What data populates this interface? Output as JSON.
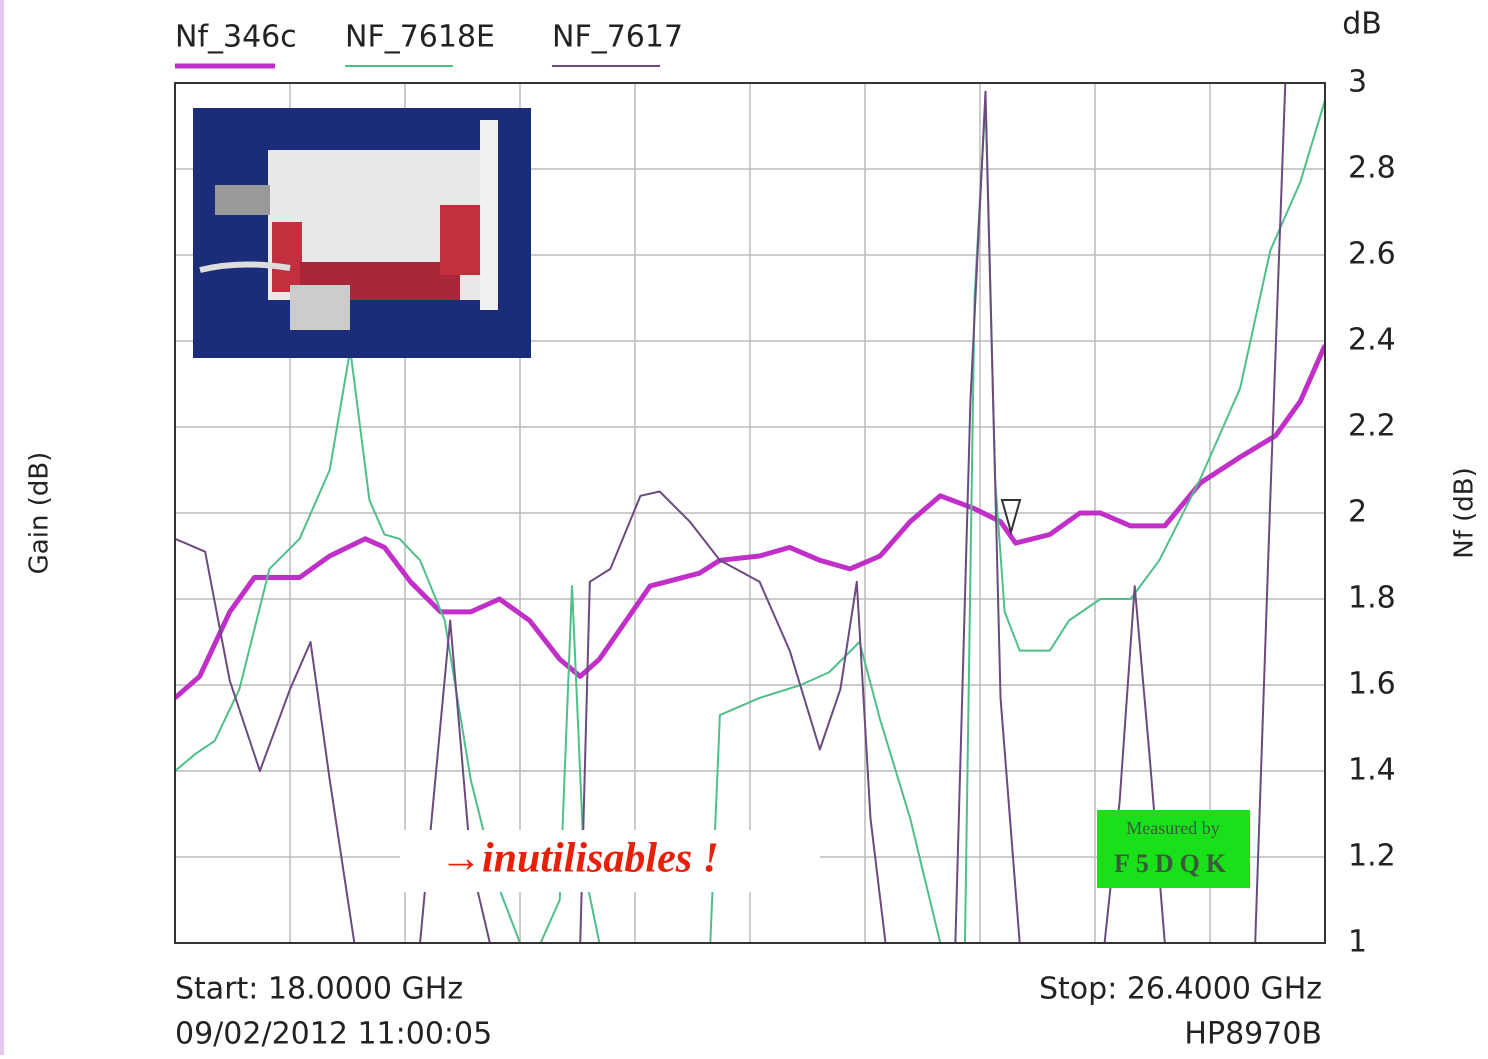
{
  "chart_data": {
    "type": "line",
    "y_unit": "dB",
    "ylabel_left": "Gain (dB)",
    "ylabel_right": "Nf (dB)",
    "xlim": [
      18,
      26.4
    ],
    "ylim": [
      1,
      3
    ],
    "yticks": [
      1,
      1.2,
      1.4,
      1.6,
      1.8,
      2,
      2.2,
      2.4,
      2.6,
      2.8,
      3
    ],
    "grid": true,
    "start_label": "Start: 18.0000 GHz",
    "stop_label": "Stop: 26.4000 GHz",
    "timestamp": "09/02/2012 11:00:05",
    "instrument": "HP8970B",
    "annotation": "→inutilisables !",
    "badge_line1": "Measured by",
    "badge_line2": "F5DQK",
    "series": [
      {
        "name": "Nf_346c",
        "color": "#c030c8",
        "width": 5,
        "x": [
          18.0,
          18.18,
          18.4,
          18.58,
          18.91,
          19.13,
          19.39,
          19.53,
          19.72,
          19.94,
          20.16,
          20.37,
          20.59,
          20.81,
          20.96,
          21.1,
          21.47,
          21.83,
          21.98,
          22.27,
          22.49,
          22.71,
          22.93,
          23.15,
          23.37,
          23.59,
          23.84,
          24.03,
          24.14,
          24.39,
          24.61,
          24.76,
          24.98,
          25.23,
          25.49,
          25.78,
          26.04,
          26.22,
          26.4
        ],
        "values": [
          1.57,
          1.62,
          1.77,
          1.85,
          1.85,
          1.9,
          1.94,
          1.92,
          1.84,
          1.77,
          1.77,
          1.8,
          1.75,
          1.66,
          1.62,
          1.66,
          1.83,
          1.86,
          1.89,
          1.9,
          1.92,
          1.89,
          1.87,
          1.9,
          1.98,
          2.04,
          2.01,
          1.98,
          1.93,
          1.95,
          2.0,
          2.0,
          1.97,
          1.97,
          2.07,
          2.13,
          2.18,
          2.26,
          2.39
        ]
      },
      {
        "name": "NF_7618E",
        "color": "#4fbf8a",
        "width": 2,
        "x": [
          18.0,
          18.15,
          18.29,
          18.47,
          18.69,
          18.91,
          19.13,
          19.28,
          19.42,
          19.53,
          19.64,
          19.79,
          19.97,
          20.16,
          20.34,
          20.52,
          20.67,
          20.81,
          20.9,
          20.99,
          21.1,
          21.91,
          21.98,
          22.27,
          22.57,
          22.78,
          23.0,
          23.15,
          23.37,
          23.59,
          23.77,
          23.84,
          23.92,
          23.99,
          24.06,
          24.17,
          24.39,
          24.53,
          24.76,
          24.98,
          25.19,
          25.49,
          25.78,
          26.0,
          26.22,
          26.4
        ],
        "values": [
          1.4,
          1.44,
          1.47,
          1.59,
          1.87,
          1.94,
          2.1,
          2.38,
          2.03,
          1.95,
          1.94,
          1.89,
          1.75,
          1.38,
          1.15,
          1.0,
          1.0,
          1.1,
          1.83,
          1.17,
          1.0,
          1.0,
          1.53,
          1.57,
          1.6,
          1.63,
          1.7,
          1.52,
          1.29,
          1.0,
          1.0,
          2.5,
          2.96,
          2.08,
          1.77,
          1.68,
          1.68,
          1.75,
          1.8,
          1.8,
          1.89,
          2.08,
          2.29,
          2.61,
          2.77,
          2.96
        ]
      },
      {
        "name": "NF_7617",
        "color": "#6c4a80",
        "width": 2,
        "x": [
          18.0,
          18.22,
          18.4,
          18.62,
          18.84,
          18.99,
          19.13,
          19.31,
          19.79,
          20.01,
          20.16,
          20.3,
          20.96,
          21.03,
          21.18,
          21.4,
          21.54,
          21.76,
          21.98,
          22.27,
          22.49,
          22.71,
          22.86,
          22.98,
          23.08,
          23.19,
          23.7,
          23.81,
          23.92,
          24.03,
          24.17,
          24.79,
          24.9,
          25.01,
          25.12,
          25.23,
          25.89,
          26.0,
          26.11
        ],
        "values": [
          1.94,
          1.91,
          1.61,
          1.4,
          1.59,
          1.7,
          1.38,
          1.0,
          1.0,
          1.75,
          1.19,
          1.0,
          1.0,
          1.84,
          1.87,
          2.04,
          2.05,
          1.98,
          1.89,
          1.84,
          1.68,
          1.45,
          1.59,
          1.84,
          1.29,
          1.0,
          1.0,
          2.26,
          2.98,
          1.57,
          1.0,
          1.0,
          1.33,
          1.83,
          1.43,
          1.0,
          1.0,
          2.03,
          3.0
        ]
      }
    ]
  }
}
